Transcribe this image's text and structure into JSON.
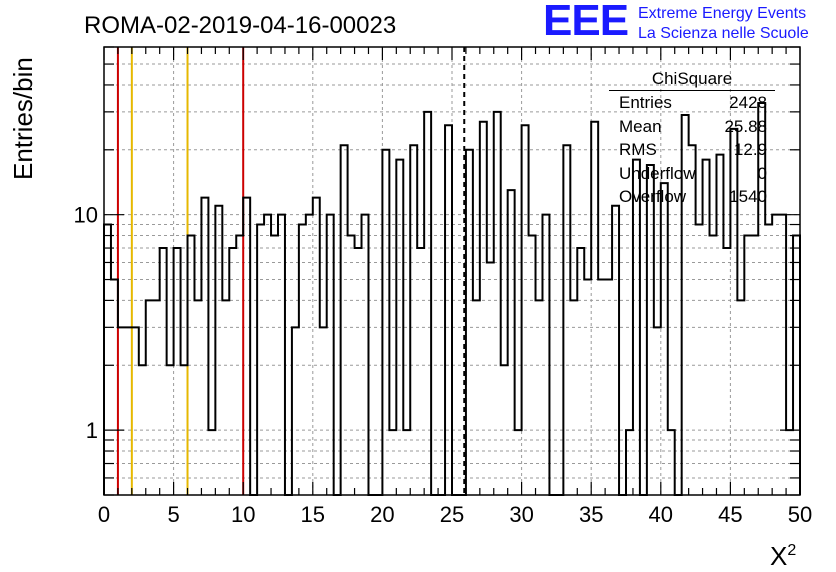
{
  "title": "ROMA-02-2019-04-16-00023",
  "logo": {
    "mark": "EEE",
    "line1": "Extreme Energy Events",
    "line2": "La Scienza nelle Scuole"
  },
  "stats": {
    "title": "ChiSquare",
    "rows": [
      {
        "key": "Entries",
        "value": "2428"
      },
      {
        "key": "Mean",
        "value": "25.88"
      },
      {
        "key": "RMS",
        "value": "12.9"
      },
      {
        "key": "Underflow",
        "value": "0"
      },
      {
        "key": "Overflow",
        "value": "1540"
      }
    ]
  },
  "chart_data": {
    "type": "bar",
    "style": "step-histogram",
    "xlabel": "X",
    "xlabel_sup": "2",
    "ylabel": "Entries/bin",
    "xlim": [
      0,
      50
    ],
    "ylim": [
      0.5,
      60
    ],
    "y_scale": "log",
    "grid": true,
    "bin_width": 0.5,
    "x_ticks": [
      0,
      5,
      10,
      15,
      20,
      25,
      30,
      35,
      40,
      45,
      50
    ],
    "y_tick_labels": [
      {
        "value": 1,
        "label": "1"
      },
      {
        "value": 10,
        "label": "10"
      }
    ],
    "values": [
      9,
      5,
      3,
      3,
      3,
      2,
      4,
      4,
      7,
      2,
      7,
      2,
      8,
      4,
      12,
      1,
      11,
      4,
      7,
      8,
      12,
      0,
      9,
      10,
      8,
      10,
      0,
      3,
      9,
      10,
      12,
      3,
      10,
      0,
      21,
      8,
      7,
      10,
      0,
      0,
      20,
      1,
      18,
      1,
      21,
      7,
      30,
      0,
      0,
      26,
      0,
      0,
      20,
      4,
      27,
      6,
      30,
      2,
      13,
      1,
      26,
      8,
      4,
      10,
      0,
      0,
      21,
      4,
      7,
      5,
      27,
      5,
      5,
      11,
      0,
      1,
      18,
      0,
      17,
      3,
      14,
      1,
      0,
      29,
      21,
      9,
      18,
      8,
      19,
      7,
      25,
      4,
      8,
      8,
      33,
      9,
      10,
      10,
      1,
      8
    ],
    "vlines": [
      {
        "x": 1,
        "color": "#cc0000"
      },
      {
        "x": 2,
        "color": "#e6b800"
      },
      {
        "x": 6,
        "color": "#e6b800"
      },
      {
        "x": 10,
        "color": "#cc0000"
      },
      {
        "x": 25.88,
        "color": "#000000",
        "dashed": true
      }
    ]
  }
}
